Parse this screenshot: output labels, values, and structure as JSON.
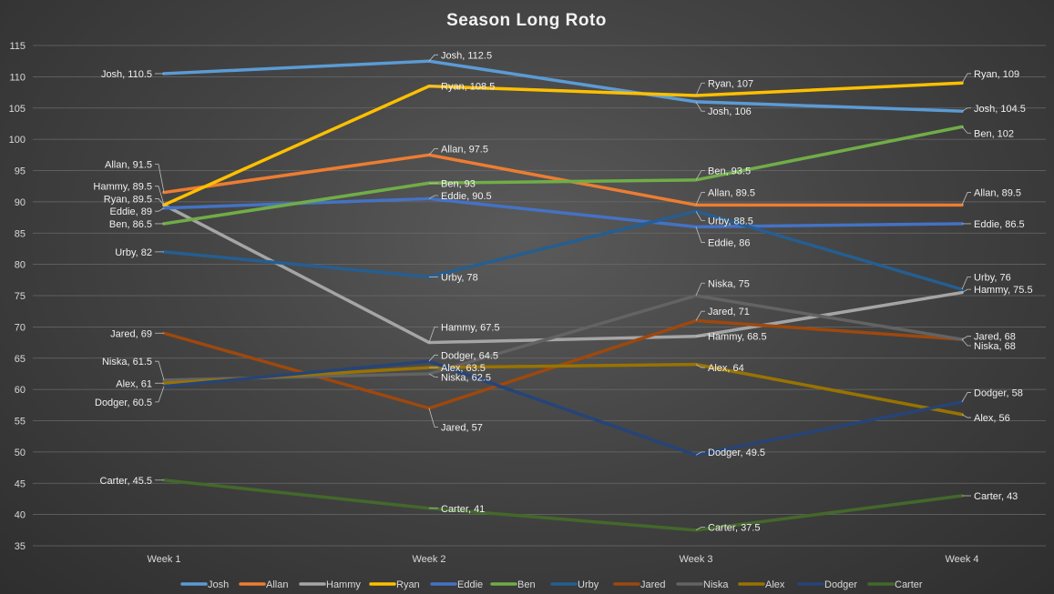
{
  "chart_data": {
    "type": "line",
    "title": "Season Long Roto",
    "xlabel": "",
    "ylabel": "",
    "categories": [
      "Week 1",
      "Week 2",
      "Week 3",
      "Week 4"
    ],
    "ylim": [
      35,
      115
    ],
    "ytick_step": 5,
    "grid": true,
    "legend_position": "bottom",
    "series": [
      {
        "name": "Josh",
        "color": "#5b9bd5",
        "values": [
          110.5,
          112.5,
          106,
          104.5
        ]
      },
      {
        "name": "Allan",
        "color": "#ed7d31",
        "values": [
          91.5,
          97.5,
          89.5,
          89.5
        ]
      },
      {
        "name": "Hammy",
        "color": "#a5a5a5",
        "values": [
          89.5,
          67.5,
          68.5,
          75.5
        ]
      },
      {
        "name": "Ryan",
        "color": "#ffc000",
        "values": [
          89.5,
          108.5,
          107,
          109
        ]
      },
      {
        "name": "Eddie",
        "color": "#4472c4",
        "values": [
          89,
          90.5,
          86,
          86.5
        ]
      },
      {
        "name": "Ben",
        "color": "#70ad47",
        "values": [
          86.5,
          93,
          93.5,
          102
        ]
      },
      {
        "name": "Urby",
        "color": "#255e91",
        "values": [
          82,
          78,
          88.5,
          76
        ]
      },
      {
        "name": "Jared",
        "color": "#9e480e",
        "values": [
          69,
          57,
          71,
          68
        ]
      },
      {
        "name": "Niska",
        "color": "#636363",
        "values": [
          61.5,
          62.5,
          75,
          68
        ]
      },
      {
        "name": "Alex",
        "color": "#997300",
        "values": [
          61,
          63.5,
          64,
          56
        ]
      },
      {
        "name": "Dodger",
        "color": "#264478",
        "values": [
          60.5,
          64.5,
          49.5,
          58
        ]
      },
      {
        "name": "Carter",
        "color": "#43682b",
        "values": [
          45.5,
          41,
          37.5,
          43
        ]
      }
    ],
    "data_labels": [
      [
        {
          "text": "Josh, 110.5",
          "side": "left",
          "ly": 110.5
        },
        {
          "text": "Josh, 112.5",
          "side": "right",
          "ly": 113.5
        },
        {
          "text": "Josh, 106",
          "side": "right",
          "ly": 104.5
        },
        {
          "text": "Josh, 104.5",
          "side": "right",
          "ly": 105
        }
      ],
      [
        {
          "text": "Allan, 91.5",
          "side": "left",
          "ly": 96
        },
        {
          "text": "Allan, 97.5",
          "side": "right",
          "ly": 98.5
        },
        {
          "text": "Allan, 89.5",
          "side": "right",
          "ly": 91.5
        },
        {
          "text": "Allan, 89.5",
          "side": "right",
          "ly": 91.5
        }
      ],
      [
        {
          "text": "Hammy, 89.5",
          "side": "left",
          "ly": 92.5
        },
        {
          "text": "Hammy, 67.5",
          "side": "right",
          "ly": 70
        },
        {
          "text": "Hammy, 68.5",
          "side": "right",
          "ly": 68.5
        },
        {
          "text": "Hammy, 75.5",
          "side": "right",
          "ly": 76
        }
      ],
      [
        {
          "text": "Ryan, 89.5",
          "side": "left",
          "ly": 90.5
        },
        {
          "text": "Ryan, 108.5",
          "side": "right",
          "ly": 108.5
        },
        {
          "text": "Ryan, 107",
          "side": "right",
          "ly": 109
        },
        {
          "text": "Ryan, 109",
          "side": "right",
          "ly": 110.5
        }
      ],
      [
        {
          "text": "Eddie, 89",
          "side": "left",
          "ly": 88.5
        },
        {
          "text": "Eddie, 90.5",
          "side": "right",
          "ly": 91
        },
        {
          "text": "Eddie, 86",
          "side": "right",
          "ly": 83.5
        },
        {
          "text": "Eddie, 86.5",
          "side": "right",
          "ly": 86.5
        }
      ],
      [
        {
          "text": "Ben, 86.5",
          "side": "left",
          "ly": 86.5
        },
        {
          "text": "Ben, 93",
          "side": "right",
          "ly": 93
        },
        {
          "text": "Ben, 93.5",
          "side": "right",
          "ly": 95
        },
        {
          "text": "Ben, 102",
          "side": "right",
          "ly": 101
        }
      ],
      [
        {
          "text": "Urby, 82",
          "side": "left",
          "ly": 82
        },
        {
          "text": "Urby, 78",
          "side": "right",
          "ly": 78
        },
        {
          "text": "Urby, 88.5",
          "side": "right",
          "ly": 87
        },
        {
          "text": "Urby, 76",
          "side": "right",
          "ly": 78
        }
      ],
      [
        {
          "text": "Jared, 69",
          "side": "left",
          "ly": 69
        },
        {
          "text": "Jared, 57",
          "side": "right",
          "ly": 54
        },
        {
          "text": "Jared, 71",
          "side": "right",
          "ly": 72.5
        },
        {
          "text": "Jared, 68",
          "side": "right",
          "ly": 68.5
        }
      ],
      [
        {
          "text": "Niska, 61.5",
          "side": "left",
          "ly": 64.5
        },
        {
          "text": "Niska, 62.5",
          "side": "right",
          "ly": 62
        },
        {
          "text": "Niska, 75",
          "side": "right",
          "ly": 77
        },
        {
          "text": "Niska, 68",
          "side": "right",
          "ly": 67
        }
      ],
      [
        {
          "text": "Alex, 61",
          "side": "left",
          "ly": 61
        },
        {
          "text": "Alex, 63.5",
          "side": "right",
          "ly": 63.5
        },
        {
          "text": "Alex, 64",
          "side": "right",
          "ly": 63.5
        },
        {
          "text": "Alex, 56",
          "side": "right",
          "ly": 55.5
        }
      ],
      [
        {
          "text": "Dodger, 60.5",
          "side": "left",
          "ly": 58
        },
        {
          "text": "Dodger, 64.5",
          "side": "right",
          "ly": 65.5
        },
        {
          "text": "Dodger, 49.5",
          "side": "right",
          "ly": 50
        },
        {
          "text": "Dodger, 58",
          "side": "right",
          "ly": 59.5
        }
      ],
      [
        {
          "text": "Carter, 45.5",
          "side": "left",
          "ly": 45.5
        },
        {
          "text": "Carter, 41",
          "side": "right",
          "ly": 41
        },
        {
          "text": "Carter, 37.5",
          "side": "right",
          "ly": 38
        },
        {
          "text": "Carter, 43",
          "side": "right",
          "ly": 43
        }
      ]
    ]
  }
}
